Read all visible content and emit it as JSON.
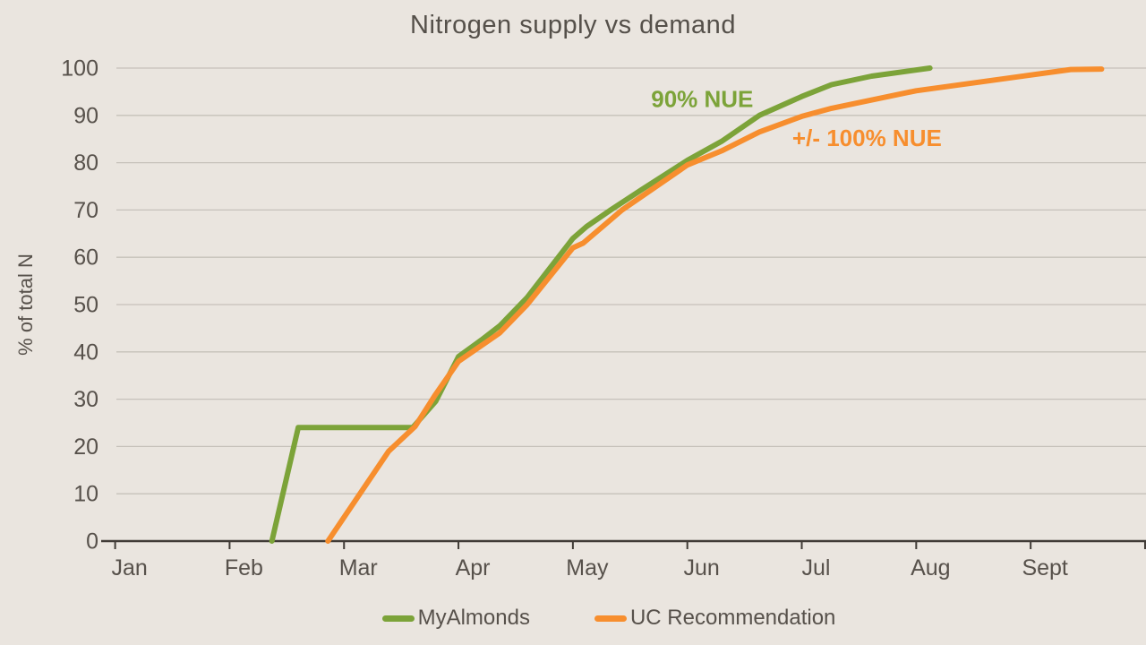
{
  "title": "Nitrogen supply vs demand",
  "colors": {
    "background": "#EAE5DF",
    "text": "#57514B",
    "title_text": "#55504A",
    "gridline": "#C6C1BA",
    "axis": "#403B36",
    "green": "#7CA339",
    "orange": "#F78E2E"
  },
  "chart_data": {
    "type": "line",
    "title": "Nitrogen supply vs demand",
    "xlabel": "",
    "ylabel": "% of total N",
    "ylim": [
      0,
      100
    ],
    "y_ticks": [
      0,
      10,
      20,
      30,
      40,
      50,
      60,
      70,
      80,
      90,
      100
    ],
    "x_tick_labels": [
      "Jan",
      "Feb",
      "Mar",
      "Apr",
      "May",
      "Jun",
      "Jul",
      "Aug",
      "Sept"
    ],
    "x_unit": "months, fractional, Jan 1 = 0",
    "grid": "horizontal",
    "legend_position": "bottom",
    "series": [
      {
        "name": "MyAlmonds",
        "color": "#7CA339",
        "points": [
          [
            1.37,
            0
          ],
          [
            1.6,
            24
          ],
          [
            2.6,
            24
          ],
          [
            2.8,
            29.5
          ],
          [
            3.0,
            39
          ],
          [
            3.2,
            42.5
          ],
          [
            3.36,
            45.5
          ],
          [
            3.6,
            51.5
          ],
          [
            4.0,
            64
          ],
          [
            4.12,
            66.5
          ],
          [
            4.33,
            70
          ],
          [
            4.6,
            74.3
          ],
          [
            5.0,
            80.5
          ],
          [
            5.3,
            84.5
          ],
          [
            5.63,
            90
          ],
          [
            6.0,
            94
          ],
          [
            6.26,
            96.5
          ],
          [
            6.61,
            98.3
          ],
          [
            7.12,
            100
          ]
        ]
      },
      {
        "name": "UC Recommendation",
        "color": "#F78E2E",
        "points": [
          [
            1.86,
            0
          ],
          [
            2.39,
            19
          ],
          [
            2.62,
            24.2
          ],
          [
            2.8,
            31
          ],
          [
            3.0,
            38
          ],
          [
            3.36,
            44
          ],
          [
            3.6,
            50
          ],
          [
            4.0,
            62
          ],
          [
            4.09,
            63
          ],
          [
            4.43,
            70
          ],
          [
            5.0,
            79.5
          ],
          [
            5.3,
            82.5
          ],
          [
            5.63,
            86.5
          ],
          [
            6.0,
            89.8
          ],
          [
            6.26,
            91.5
          ],
          [
            7.0,
            95.2
          ],
          [
            7.6,
            97.2
          ],
          [
            8.35,
            99.7
          ],
          [
            8.62,
            99.8
          ]
        ]
      }
    ],
    "annotations": [
      {
        "text": "90% NUE",
        "series": "MyAlmonds",
        "color": "#7CA339",
        "x": 5.13,
        "y": 93.5
      },
      {
        "text": "+/- 100% NUE",
        "series": "UC Recommendation",
        "color": "#F78E2E",
        "x": 6.57,
        "y": 85.2
      }
    ]
  },
  "legend": {
    "items": [
      {
        "label": "MyAlmonds",
        "color": "#7CA339"
      },
      {
        "label": "UC Recommendation",
        "color": "#F78E2E"
      }
    ]
  }
}
